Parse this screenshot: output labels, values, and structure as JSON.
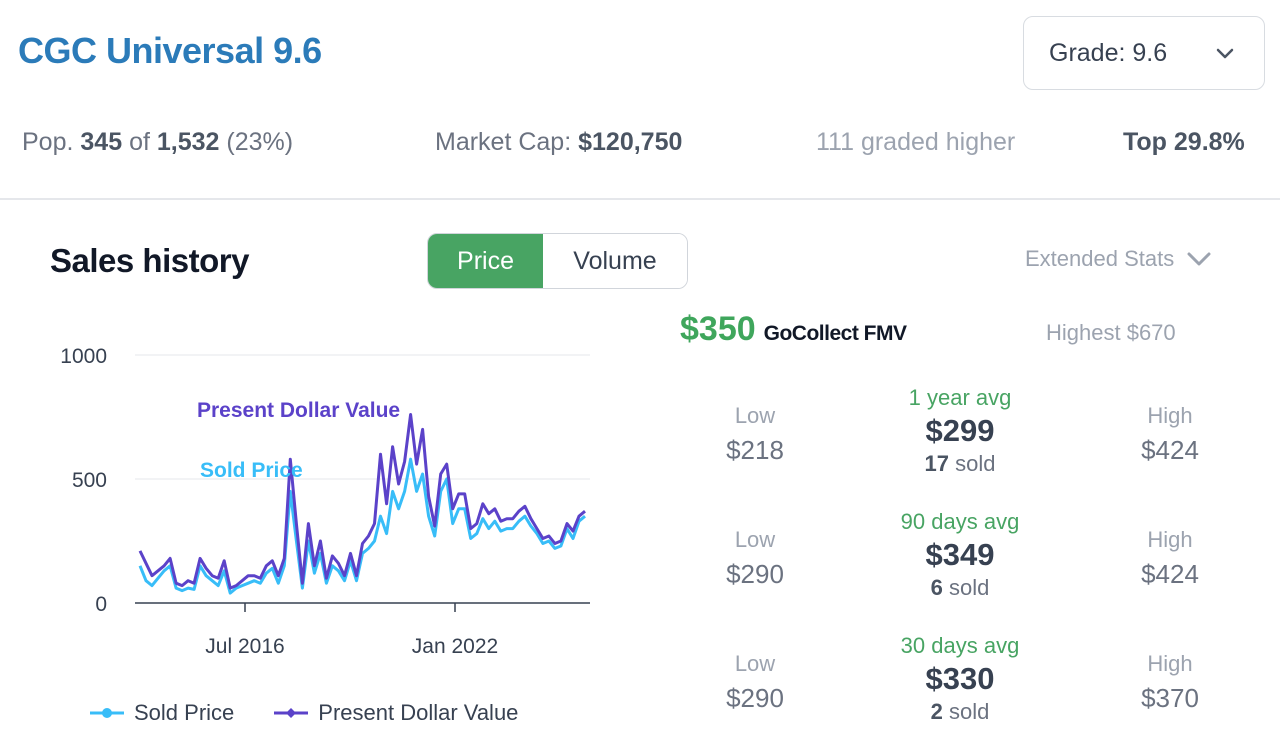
{
  "header": {
    "title": "CGC Universal 9.6",
    "grade_select": "Grade: 9.6"
  },
  "stats": {
    "pop_label": "Pop.",
    "pop_count": "345",
    "of": "of",
    "pop_total": "1,532",
    "pop_pct": "(23%)",
    "market_cap_label": "Market Cap:",
    "market_cap": "$120,750",
    "graded_higher": "111 graded higher",
    "top_pct": "Top 29.8%"
  },
  "sales": {
    "title": "Sales history",
    "toggle_price": "Price",
    "toggle_volume": "Volume",
    "extended_stats": "Extended Stats"
  },
  "chart_data": {
    "type": "line",
    "yticks": [
      "0",
      "500",
      "1000"
    ],
    "ylim": [
      0,
      1000
    ],
    "xticks": [
      "Jul 2016",
      "Jan 2022"
    ],
    "annotations": [
      "Present Dollar Value",
      "Sold Price"
    ],
    "legend": [
      "Sold Price",
      "Present Dollar Value"
    ],
    "series": [
      {
        "name": "Sold Price",
        "color": "#38bdf8",
        "values": [
          150,
          90,
          70,
          100,
          130,
          150,
          60,
          50,
          60,
          55,
          150,
          110,
          90,
          70,
          130,
          40,
          60,
          70,
          80,
          90,
          80,
          120,
          140,
          80,
          150,
          450,
          250,
          60,
          250,
          120,
          200,
          80,
          150,
          130,
          90,
          170,
          90,
          200,
          220,
          250,
          350,
          280,
          450,
          380,
          450,
          580,
          450,
          520,
          350,
          270,
          450,
          500,
          320,
          380,
          380,
          260,
          280,
          340,
          300,
          330,
          290,
          300,
          300,
          330,
          350,
          310,
          280,
          240,
          250,
          220,
          230,
          300,
          260,
          330,
          350
        ]
      },
      {
        "name": "Present Dollar Value",
        "color": "#5b42c9",
        "values": [
          210,
          160,
          110,
          130,
          150,
          180,
          80,
          70,
          90,
          80,
          180,
          140,
          110,
          100,
          170,
          60,
          70,
          90,
          110,
          110,
          100,
          150,
          170,
          110,
          180,
          580,
          320,
          80,
          320,
          150,
          250,
          100,
          190,
          160,
          110,
          200,
          110,
          240,
          270,
          320,
          600,
          400,
          630,
          480,
          570,
          760,
          560,
          700,
          430,
          310,
          520,
          560,
          380,
          440,
          440,
          300,
          320,
          400,
          360,
          380,
          330,
          340,
          340,
          370,
          390,
          340,
          300,
          260,
          270,
          240,
          250,
          320,
          290,
          350,
          370
        ]
      }
    ]
  },
  "fmv": {
    "value": "$350",
    "label": "GoCollect FMV",
    "highest": "Highest $670"
  },
  "averages": [
    {
      "period": "1 year avg",
      "avg": "$299",
      "sold_count": "17",
      "sold_word": "sold",
      "low_label": "Low",
      "low": "$218",
      "high_label": "High",
      "high": "$424"
    },
    {
      "period": "90 days avg",
      "avg": "$349",
      "sold_count": "6",
      "sold_word": "sold",
      "low_label": "Low",
      "low": "$290",
      "high_label": "High",
      "high": "$424"
    },
    {
      "period": "30 days avg",
      "avg": "$330",
      "sold_count": "2",
      "sold_word": "sold",
      "low_label": "Low",
      "low": "$290",
      "high_label": "High",
      "high": "$370"
    }
  ],
  "colors": {
    "title": "#2b7bb9",
    "accent_green": "#48a463",
    "sold_price": "#38bdf8",
    "present_value": "#5b42c9"
  },
  "icons": {
    "grade_chevron": "chevron-down-icon",
    "extended_chevron": "chevron-down-icon"
  }
}
